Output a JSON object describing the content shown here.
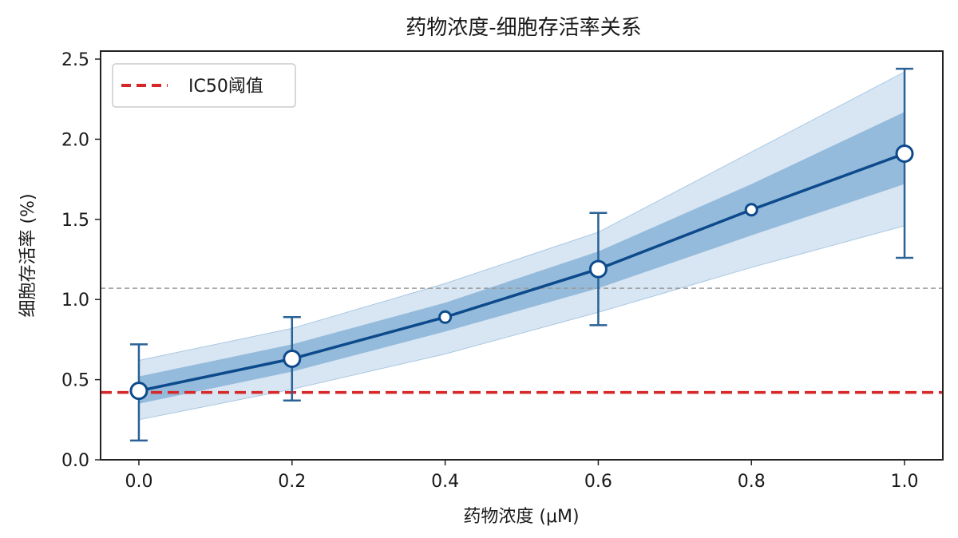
{
  "chart_data": {
    "type": "line",
    "title": "药物浓度-细胞存活率关系",
    "xlabel": "药物浓度 (μM)",
    "ylabel": "细胞存活率 (%)",
    "xlim": [
      -0.05,
      1.05
    ],
    "ylim": [
      0,
      2.55
    ],
    "xticks": [
      0.0,
      0.2,
      0.4,
      0.6,
      0.8,
      1.0
    ],
    "yticks": [
      0.0,
      0.5,
      1.0,
      1.5,
      2.0,
      2.5
    ],
    "xtick_labels": [
      "0.0",
      "0.2",
      "0.4",
      "0.6",
      "0.8",
      "1.0"
    ],
    "ytick_labels": [
      "0.0",
      "0.5",
      "1.0",
      "1.5",
      "2.0",
      "2.5"
    ],
    "grid": false,
    "legend_position": "top-left",
    "series": [
      {
        "type": "line",
        "color": "#0d4a8c",
        "x": [
          0.0,
          0.2,
          0.4,
          0.6,
          0.8,
          1.0
        ],
        "y": [
          0.43,
          0.63,
          0.89,
          1.19,
          1.56,
          1.91
        ],
        "error": [
          [
            0.12,
            0.72
          ],
          [
            0.37,
            0.89
          ],
          null,
          [
            0.84,
            1.54
          ],
          null,
          [
            1.26,
            2.44
          ]
        ],
        "band_inner": [
          [
            0.35,
            0.52
          ],
          [
            0.55,
            0.72
          ],
          [
            0.8,
            0.98
          ],
          [
            1.07,
            1.3
          ],
          [
            1.4,
            1.72
          ],
          [
            1.72,
            2.17
          ]
        ],
        "band_outer": [
          [
            0.25,
            0.62
          ],
          [
            0.44,
            0.82
          ],
          [
            0.66,
            1.1
          ],
          [
            0.92,
            1.42
          ],
          [
            1.2,
            1.92
          ],
          [
            1.46,
            2.42
          ]
        ]
      }
    ],
    "reference_lines": [
      {
        "name": "IC50阈值",
        "y": 0.42,
        "color": "#d62728",
        "style": "dashed"
      },
      {
        "y": 1.07,
        "color": "#999999",
        "style": "dashed"
      }
    ],
    "legend": [
      {
        "label": "IC50阈值",
        "color": "#d62728",
        "style": "dashed"
      }
    ]
  }
}
